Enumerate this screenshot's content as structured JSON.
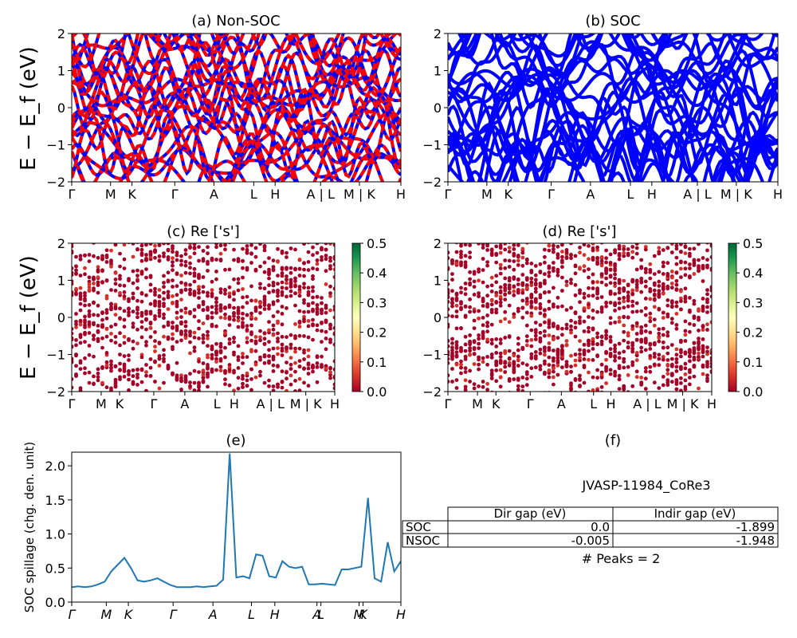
{
  "panels": {
    "a": {
      "title": "(a) Non-SOC"
    },
    "b": {
      "title": "(b) SOC"
    },
    "c": {
      "title": "(c)  Re ['s']"
    },
    "d": {
      "title": "(d) Re ['s']"
    },
    "e": {
      "title": "(e)"
    },
    "f": {
      "title": "(f)"
    }
  },
  "ylabel_band": "E − E_f (eV)",
  "ylabel_spillage": "SOC spillage (chg. den. unit)",
  "band_yticks": [
    "−2",
    "−1",
    "0",
    "1",
    "2"
  ],
  "kpath_top": [
    "Γ",
    "M",
    "K",
    "Γ",
    "A",
    "L",
    "H",
    "A | L",
    "M | K",
    "H"
  ],
  "kpath_mid": [
    "Γ",
    "M",
    "K",
    "Γ",
    "A",
    "L",
    "H",
    "A | L",
    "M | K",
    "H"
  ],
  "kpath_bottom": [
    "Γ",
    "M",
    "K",
    "Γ",
    "A",
    "L",
    "H",
    "A",
    "L",
    "M",
    "K",
    "H"
  ],
  "colorbar_ticks": [
    "0.0",
    "0.1",
    "0.2",
    "0.3",
    "0.4",
    "0.5"
  ],
  "colors": {
    "nsoc_blue": "#0000ff",
    "nsoc_red": "#ff0000",
    "soc": "#0000ff",
    "spillage": "#1f77b4",
    "proj_low": "#a50026",
    "proj_high": "#006837"
  },
  "info": {
    "material": "JVASP-11984_CoRe3",
    "table_headers": [
      "",
      "Dir gap (eV)",
      "Indir gap (eV)"
    ],
    "rows": [
      {
        "label": "SOC",
        "dir": "0.0",
        "indir": "-1.899"
      },
      {
        "label": "NSOC",
        "dir": "-0.005",
        "indir": "-1.948"
      }
    ],
    "peaks": "# Peaks = 2"
  },
  "chart_data": [
    {
      "type": "line",
      "title": "(a) Non-SOC",
      "ylabel": "E − E_f (eV)",
      "ylim": [
        -2,
        2
      ],
      "x_ticks": [
        "Γ",
        "M",
        "K",
        "Γ",
        "A",
        "L",
        "H",
        "A | L",
        "M | K",
        "H"
      ],
      "series": [
        {
          "name": "Non-SOC bands"
        }
      ]
    },
    {
      "type": "line",
      "title": "(b) SOC",
      "ylim": [
        -2,
        2
      ],
      "x_ticks": [
        "Γ",
        "M",
        "K",
        "Γ",
        "A",
        "L",
        "H",
        "A | L",
        "M | K",
        "H"
      ]
    },
    {
      "type": "scatter",
      "title": "(c)  Re ['s']",
      "ylim": [
        -2,
        2
      ],
      "colorbar": [
        0.0,
        0.5
      ]
    },
    {
      "type": "scatter",
      "title": "(d) Re ['s']",
      "ylim": [
        -2,
        2
      ],
      "colorbar": [
        0.0,
        0.5
      ]
    },
    {
      "type": "line",
      "title": "(e)",
      "ylabel": "SOC spillage (chg. den. unit)",
      "ylim": [
        0,
        2.2
      ],
      "y_ticks": [
        0.0,
        0.5,
        1.0,
        1.5,
        2.0
      ],
      "x_ticks": [
        "Γ",
        "M",
        "K",
        "Γ",
        "A",
        "L",
        "H",
        "A",
        "L",
        "M",
        "K",
        "H"
      ],
      "x": [
        0,
        2,
        4,
        6,
        8,
        10,
        12,
        14,
        16,
        18,
        20,
        22,
        24,
        26,
        28,
        30,
        32,
        34,
        36,
        38,
        40,
        42,
        44,
        46,
        48,
        50,
        52,
        54,
        56,
        58,
        60,
        62,
        64,
        66,
        68,
        70,
        72,
        74,
        76,
        78,
        80,
        82,
        84,
        86,
        88,
        90,
        92,
        94,
        96,
        98,
        100
      ],
      "values": [
        0.22,
        0.23,
        0.22,
        0.23,
        0.26,
        0.3,
        0.45,
        0.55,
        0.65,
        0.5,
        0.32,
        0.3,
        0.32,
        0.35,
        0.3,
        0.25,
        0.22,
        0.22,
        0.22,
        0.23,
        0.22,
        0.23,
        0.24,
        0.33,
        2.18,
        0.36,
        0.38,
        0.35,
        0.7,
        0.68,
        0.38,
        0.36,
        0.6,
        0.52,
        0.5,
        0.52,
        0.26,
        0.26,
        0.27,
        0.26,
        0.25,
        0.48,
        0.48,
        0.5,
        0.52,
        1.53,
        0.35,
        0.3,
        0.88,
        0.45,
        0.6
      ]
    }
  ]
}
